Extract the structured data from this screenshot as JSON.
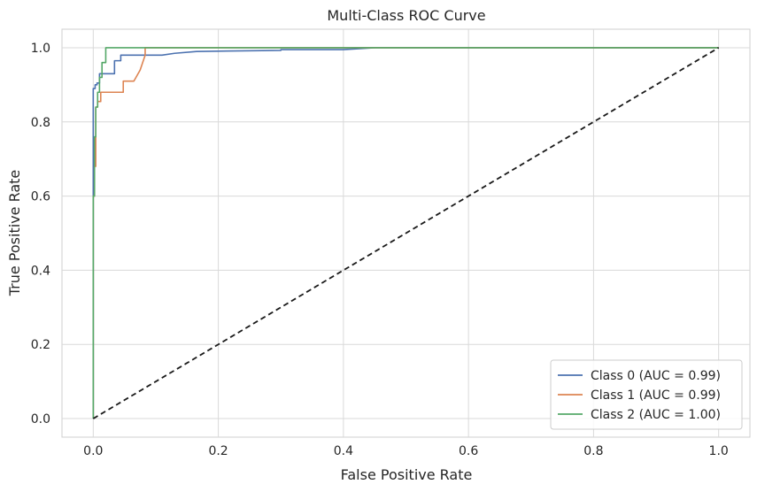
{
  "chart_data": {
    "type": "line",
    "title": "Multi-Class ROC Curve",
    "xlabel": "False Positive Rate",
    "ylabel": "True Positive Rate",
    "xlim": [
      -0.05,
      1.05
    ],
    "ylim": [
      -0.05,
      1.05
    ],
    "xticks": [
      0.0,
      0.2,
      0.4,
      0.6,
      0.8,
      1.0
    ],
    "yticks": [
      0.0,
      0.2,
      0.4,
      0.6,
      0.8,
      1.0
    ],
    "xtick_labels": [
      "0.0",
      "0.2",
      "0.4",
      "0.6",
      "0.8",
      "1.0"
    ],
    "ytick_labels": [
      "0.0",
      "0.2",
      "0.4",
      "0.6",
      "0.8",
      "1.0"
    ],
    "grid": true,
    "legend_position": "lower-right",
    "series": [
      {
        "name": "Class 0 (AUC = 0.99)",
        "color": "#4c72b0",
        "x": [
          0.0,
          0.0,
          0.0,
          0.003,
          0.003,
          0.006,
          0.006,
          0.01,
          0.01,
          0.034,
          0.034,
          0.044,
          0.044,
          0.11,
          0.13,
          0.165,
          0.3,
          0.3,
          0.4,
          0.45,
          1.0
        ],
        "y": [
          0.0,
          0.8,
          0.89,
          0.89,
          0.9,
          0.9,
          0.905,
          0.905,
          0.93,
          0.93,
          0.965,
          0.965,
          0.98,
          0.98,
          0.985,
          0.99,
          0.993,
          0.995,
          0.995,
          1.0,
          1.0
        ]
      },
      {
        "name": "Class 1 (AUC = 0.99)",
        "color": "#dd8452",
        "x": [
          0.0,
          0.0,
          0.0,
          0.002,
          0.002,
          0.004,
          0.004,
          0.007,
          0.007,
          0.012,
          0.012,
          0.048,
          0.048,
          0.065,
          0.075,
          0.083,
          0.083,
          1.0
        ],
        "y": [
          0.0,
          0.32,
          0.6,
          0.6,
          0.68,
          0.68,
          0.84,
          0.84,
          0.855,
          0.855,
          0.88,
          0.88,
          0.91,
          0.91,
          0.94,
          0.98,
          1.0,
          1.0
        ],
        "step": true
      },
      {
        "name": "Class 2 (AUC = 1.00)",
        "color": "#55a868",
        "x": [
          0.0,
          0.0,
          0.002,
          0.002,
          0.004,
          0.004,
          0.007,
          0.007,
          0.01,
          0.01,
          0.014,
          0.014,
          0.02,
          0.02,
          1.0
        ],
        "y": [
          0.0,
          0.6,
          0.6,
          0.76,
          0.76,
          0.84,
          0.84,
          0.88,
          0.88,
          0.92,
          0.92,
          0.96,
          0.96,
          1.0,
          1.0
        ]
      },
      {
        "name": "",
        "color": "#1a1a1a",
        "dashed": true,
        "x": [
          0.0,
          1.0
        ],
        "y": [
          0.0,
          1.0
        ]
      }
    ]
  }
}
